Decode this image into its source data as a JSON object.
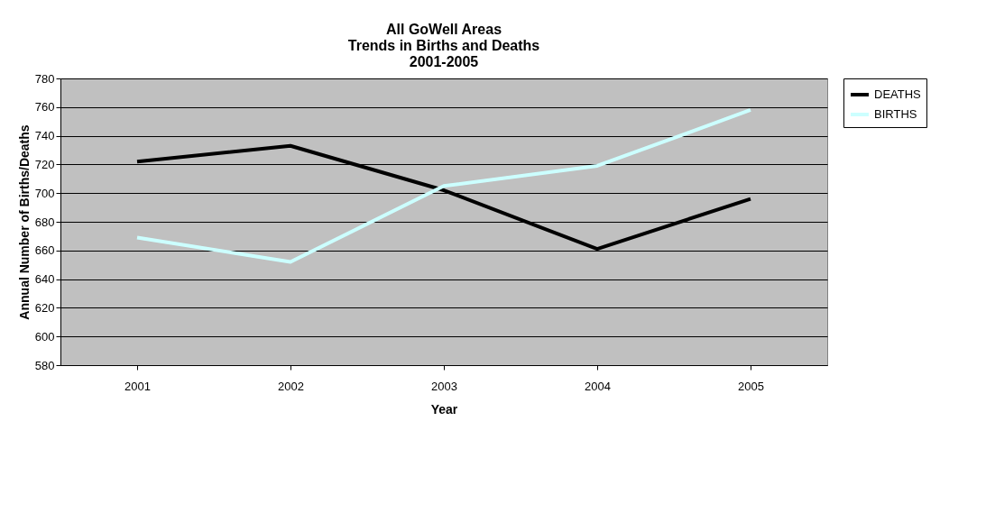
{
  "chart_data": {
    "type": "line",
    "title": [
      "All GoWell Areas",
      "Trends in Births and Deaths",
      "2001-2005"
    ],
    "xlabel": "Year",
    "ylabel": "Annual Number of Births/Deaths",
    "categories": [
      "2001",
      "2002",
      "2003",
      "2004",
      "2005"
    ],
    "series": [
      {
        "name": "DEATHS",
        "color": "#000000",
        "values": [
          722,
          733,
          702,
          661,
          696
        ]
      },
      {
        "name": "BIRTHS",
        "color": "#ccffff",
        "values": [
          669,
          652,
          705,
          719,
          758
        ]
      }
    ],
    "ylim": [
      580,
      780
    ],
    "yticks": [
      580,
      600,
      620,
      640,
      660,
      680,
      700,
      720,
      740,
      760,
      780
    ],
    "grid": "y",
    "legend": "right",
    "marker": "none",
    "line_style": "solid"
  }
}
